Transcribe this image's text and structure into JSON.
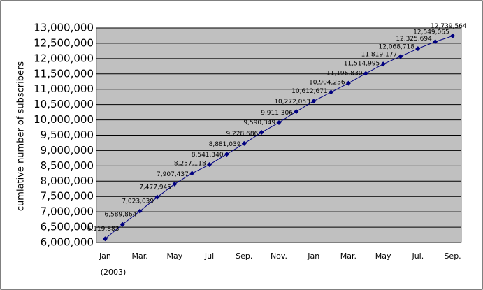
{
  "chart_data": {
    "type": "line",
    "y_label": "cumlative number of subscribers",
    "annotation": "(2003)",
    "categories": [
      "Jan",
      null,
      "Mar.",
      null,
      "May",
      null,
      "Jul",
      null,
      "Sep.",
      null,
      "Nov.",
      null,
      "Jan",
      null,
      "Mar.",
      null,
      "May",
      null,
      "Jul.",
      null,
      "Sep."
    ],
    "series": [
      {
        "name": "subscribers",
        "color": "#000080",
        "values": [
          6119883,
          6589864,
          7023039,
          7477945,
          7907437,
          8257118,
          8541340,
          8881039,
          9228686,
          9590349,
          9911306,
          10272053,
          10612671,
          10904236,
          11196830,
          11514995,
          11819177,
          12068718,
          12325694,
          12549065,
          12739564
        ],
        "value_labels": [
          "6,119,883",
          "6,589,864",
          "7,023,039",
          "7,477,945",
          "7,907,437",
          "8,257,118",
          "8,541,340",
          "8,881,039",
          "9,228,686",
          "9,590,349",
          "9,911,306",
          "10,272,053",
          "10,612,671",
          "10,904,236",
          "11,196,830",
          "11,514,995",
          "11,819,177",
          "12,068,718",
          "12,325,694",
          "12,549,065",
          "12,739,564"
        ]
      }
    ],
    "ylim": [
      6000000,
      13000000
    ],
    "yticks": [
      {
        "value": 6000000,
        "label": "6,000,000"
      },
      {
        "value": 6500000,
        "label": "6,500,000"
      },
      {
        "value": 7000000,
        "label": "7,000,000"
      },
      {
        "value": 7500000,
        "label": "7,500,000"
      },
      {
        "value": 8000000,
        "label": "8,000,000"
      },
      {
        "value": 8500000,
        "label": "8,500,000"
      },
      {
        "value": 9000000,
        "label": "9,000,000"
      },
      {
        "value": 9500000,
        "label": "9,500,000"
      },
      {
        "value": 10000000,
        "label": "10,000,000"
      },
      {
        "value": 10500000,
        "label": "10,500,000"
      },
      {
        "value": 11000000,
        "label": "11,000,000"
      },
      {
        "value": 11500000,
        "label": "11,500,000"
      },
      {
        "value": 12000000,
        "label": "12,000,000"
      },
      {
        "value": 12500000,
        "label": "12,500,000"
      },
      {
        "value": 13000000,
        "label": "13,000,000"
      }
    ],
    "grid": true,
    "plot_color": "#c0c0c0"
  }
}
